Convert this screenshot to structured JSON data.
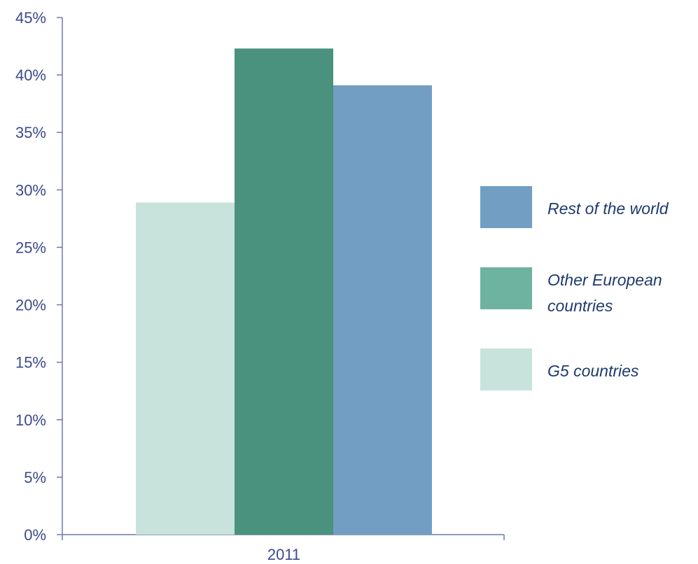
{
  "chart_data": {
    "type": "bar",
    "categories": [
      "2011"
    ],
    "series": [
      {
        "name": "G5 countries",
        "values": [
          28.9
        ],
        "color": "#c8e3dc"
      },
      {
        "name": "Other European countries",
        "values": [
          42.3
        ],
        "color": "#4a917e"
      },
      {
        "name": "Rest of the world",
        "values": [
          39.1
        ],
        "color": "#729ec3"
      }
    ],
    "ylim": [
      0,
      45
    ],
    "yticks": [
      "0%",
      "5%",
      "10%",
      "15%",
      "20%",
      "25%",
      "30%",
      "35%",
      "40%",
      "45%"
    ],
    "ytick_values": [
      0,
      5,
      10,
      15,
      20,
      25,
      30,
      35,
      40,
      45
    ],
    "title": "",
    "xlabel": "",
    "ylabel": "",
    "grid": false,
    "legend_position": "right"
  },
  "legend": {
    "items": [
      {
        "label": "Rest of the world",
        "color": "#729ec3"
      },
      {
        "label_line1": "Other European",
        "label_line2": "countries",
        "color": "#6db3a0"
      },
      {
        "label": "G5 countries",
        "color": "#c8e3dc"
      }
    ]
  }
}
